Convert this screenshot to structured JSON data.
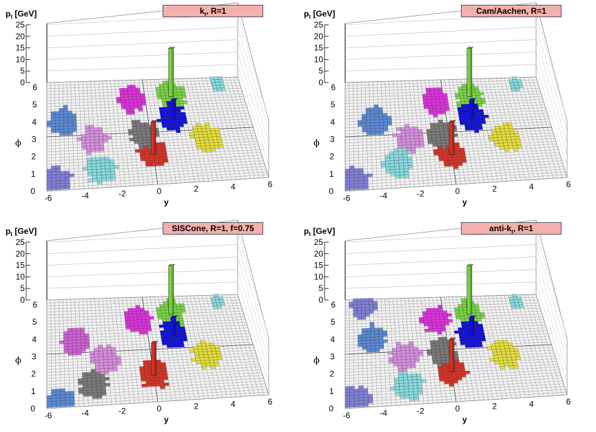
{
  "panels": [
    {
      "id": "kt",
      "title": "kt, R=1",
      "title_main": "k",
      "title_sub": "t",
      "title_rest": ", R=1",
      "pt_label_main": "p",
      "pt_label_sub": "t",
      "pt_label_unit": " [GeV]",
      "phi_label": "ϕ",
      "y_label": "y",
      "pt_ticks": [
        "0",
        "5",
        "10",
        "15",
        "20",
        "25"
      ],
      "phi_ticks": [
        "0",
        "1",
        "2",
        "3",
        "4",
        "5",
        "6"
      ],
      "y_ticks": [
        "-6",
        "-4",
        "-2",
        "0",
        "2",
        "4",
        "6"
      ]
    },
    {
      "id": "cam",
      "title": "Cam/Aachen, R=1",
      "title_main": "Cam/Aachen, R=1",
      "title_sub": "",
      "title_rest": "",
      "pt_label_main": "p",
      "pt_label_sub": "t",
      "pt_label_unit": " [GeV]",
      "phi_label": "ϕ",
      "y_label": "y",
      "pt_ticks": [
        "0",
        "5",
        "10",
        "15",
        "20",
        "25"
      ],
      "phi_ticks": [
        "0",
        "1",
        "2",
        "3",
        "4",
        "5",
        "6"
      ],
      "y_ticks": [
        "-6",
        "-4",
        "-2",
        "0",
        "2",
        "4",
        "6"
      ]
    },
    {
      "id": "siscone",
      "title": "SISCone, R=1, f=0.75",
      "title_main": "SISCone, R=1, f=0.75",
      "title_sub": "",
      "title_rest": "",
      "pt_label_main": "p",
      "pt_label_sub": "t",
      "pt_label_unit": " [GeV]",
      "phi_label": "ϕ",
      "y_label": "y",
      "pt_ticks": [
        "0",
        "5",
        "10",
        "15",
        "20",
        "25"
      ],
      "phi_ticks": [
        "0",
        "1",
        "2",
        "3",
        "4",
        "5",
        "6"
      ],
      "y_ticks": [
        "-6",
        "-4",
        "-2",
        "0",
        "2",
        "4",
        "6"
      ]
    },
    {
      "id": "antikt",
      "title": "anti-kt, R=1",
      "title_main": "anti-k",
      "title_sub": "t",
      "title_rest": ", R=1",
      "pt_label_main": "p",
      "pt_label_sub": "t",
      "pt_label_unit": " [GeV]",
      "phi_label": "ϕ",
      "y_label": "y",
      "pt_ticks": [
        "0",
        "5",
        "10",
        "15",
        "20",
        "25"
      ],
      "phi_ticks": [
        "0",
        "1",
        "2",
        "3",
        "4",
        "5",
        "6"
      ],
      "y_ticks": [
        "-6",
        "-4",
        "-2",
        "0",
        "2",
        "4",
        "6"
      ]
    }
  ],
  "chart_data": [
    {
      "type": "heatmap",
      "title": "kt, R=1",
      "xlabel": "y",
      "ylabel": "phi",
      "zlabel": "pt [GeV]",
      "xlim": [
        -6,
        6
      ],
      "ylim": [
        0,
        6.28
      ],
      "zlim": [
        0,
        25
      ],
      "grid": true,
      "jets": [
        {
          "color": "#e030e0",
          "y": -0.9,
          "phi": 5.1,
          "pt": 0
        },
        {
          "color": "#7ad642",
          "y": 1.6,
          "phi": 5.2,
          "pt": 21
        },
        {
          "color": "#1010e0",
          "y": 1.5,
          "phi": 3.9,
          "pt": 8
        },
        {
          "color": "#d93326",
          "y": 0.0,
          "phi": 1.8,
          "pt": 14
        },
        {
          "color": "#e8e03a",
          "y": 3.2,
          "phi": 2.6,
          "pt": 0
        },
        {
          "color": "#7a7a7a",
          "y": -0.4,
          "phi": 3.0,
          "pt": 0
        },
        {
          "color": "#5a8ad6",
          "y": -5.0,
          "phi": 3.9,
          "pt": 0
        },
        {
          "color": "#d890e0",
          "y": -3.3,
          "phi": 2.8,
          "pt": 0
        },
        {
          "color": "#88dde0",
          "y": -3.0,
          "phi": 1.0,
          "pt": 0
        },
        {
          "color": "#8080d8",
          "y": -5.5,
          "phi": 0.5,
          "pt": 0
        },
        {
          "color": "#88dde0",
          "y": 4.6,
          "phi": 5.8,
          "pt": 0
        }
      ]
    },
    {
      "type": "heatmap",
      "title": "Cam/Aachen, R=1",
      "xlabel": "y",
      "ylabel": "phi",
      "zlabel": "pt [GeV]",
      "xlim": [
        -6,
        6
      ],
      "ylim": [
        0,
        6.28
      ],
      "zlim": [
        0,
        25
      ],
      "grid": true,
      "jets": [
        {
          "color": "#e030e0",
          "y": -0.5,
          "phi": 5.0,
          "pt": 0
        },
        {
          "color": "#7ad642",
          "y": 1.6,
          "phi": 5.2,
          "pt": 21
        },
        {
          "color": "#1010e0",
          "y": 1.5,
          "phi": 3.9,
          "pt": 8
        },
        {
          "color": "#d93326",
          "y": 0.0,
          "phi": 1.8,
          "pt": 14
        },
        {
          "color": "#e8e03a",
          "y": 3.2,
          "phi": 2.6,
          "pt": 0
        },
        {
          "color": "#7a7a7a",
          "y": -0.4,
          "phi": 3.0,
          "pt": 0
        },
        {
          "color": "#5a8ad6",
          "y": -4.2,
          "phi": 3.9,
          "pt": 0
        },
        {
          "color": "#d890e0",
          "y": -2.3,
          "phi": 2.8,
          "pt": 0
        },
        {
          "color": "#88dde0",
          "y": -3.0,
          "phi": 1.4,
          "pt": 0
        },
        {
          "color": "#8080d8",
          "y": -5.5,
          "phi": 0.5,
          "pt": 0
        },
        {
          "color": "#88dde0",
          "y": 4.6,
          "phi": 5.8,
          "pt": 0
        }
      ]
    },
    {
      "type": "heatmap",
      "title": "SISCone, R=1, f=0.75",
      "xlabel": "y",
      "ylabel": "phi",
      "zlabel": "pt [GeV]",
      "xlim": [
        -6,
        6
      ],
      "ylim": [
        0,
        6.28
      ],
      "zlim": [
        0,
        25
      ],
      "grid": true,
      "jets": [
        {
          "color": "#e030e0",
          "y": -0.5,
          "phi": 4.8,
          "pt": 0
        },
        {
          "color": "#7ad642",
          "y": 1.6,
          "phi": 5.2,
          "pt": 21
        },
        {
          "color": "#1010e0",
          "y": 1.5,
          "phi": 3.9,
          "pt": 8
        },
        {
          "color": "#d93326",
          "y": 0.0,
          "phi": 1.6,
          "pt": 14
        },
        {
          "color": "#e8e03a",
          "y": 3.2,
          "phi": 2.6,
          "pt": 0
        },
        {
          "color": "#7a7a7a",
          "y": -3.4,
          "phi": 1.2,
          "pt": 0
        },
        {
          "color": "#d890e0",
          "y": -2.6,
          "phi": 2.6,
          "pt": 0
        },
        {
          "color": "#d060d8",
          "y": -4.3,
          "phi": 3.8,
          "pt": 0
        },
        {
          "color": "#5a8ad6",
          "y": -5.3,
          "phi": 0.2,
          "pt": 0
        },
        {
          "color": "#88dde0",
          "y": 4.6,
          "phi": 5.8,
          "pt": 0
        }
      ]
    },
    {
      "type": "heatmap",
      "title": "anti-kt, R=1",
      "xlabel": "y",
      "ylabel": "phi",
      "zlabel": "pt [GeV]",
      "xlim": [
        -6,
        6
      ],
      "ylim": [
        0,
        6.28
      ],
      "zlim": [
        0,
        25
      ],
      "grid": true,
      "jets": [
        {
          "color": "#e030e0",
          "y": -0.5,
          "phi": 4.9,
          "pt": 0
        },
        {
          "color": "#7ad642",
          "y": 1.6,
          "phi": 5.2,
          "pt": 21
        },
        {
          "color": "#1010e0",
          "y": 1.5,
          "phi": 3.9,
          "pt": 8
        },
        {
          "color": "#d93326",
          "y": 0.0,
          "phi": 1.8,
          "pt": 14
        },
        {
          "color": "#e8e03a",
          "y": 3.2,
          "phi": 2.6,
          "pt": 0
        },
        {
          "color": "#7a7a7a",
          "y": -0.4,
          "phi": 3.0,
          "pt": 0
        },
        {
          "color": "#5a8ad6",
          "y": -4.4,
          "phi": 3.9,
          "pt": 0
        },
        {
          "color": "#d890e0",
          "y": -2.5,
          "phi": 2.8,
          "pt": 0
        },
        {
          "color": "#88dde0",
          "y": -2.5,
          "phi": 1.1,
          "pt": 0
        },
        {
          "color": "#8080d8",
          "y": -5.5,
          "phi": 0.4,
          "pt": 0
        },
        {
          "color": "#88dde0",
          "y": 4.6,
          "phi": 5.8,
          "pt": 0
        },
        {
          "color": "#8080d8",
          "y": -4.8,
          "phi": 6.0,
          "pt": 0
        }
      ]
    }
  ]
}
